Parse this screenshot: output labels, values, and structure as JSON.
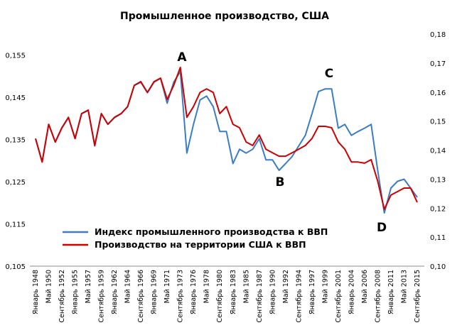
{
  "chart_data": {
    "type": "line",
    "title": "Промышленное производство, США",
    "categories": [
      "Январь 1948",
      null,
      "Май 1950",
      null,
      "Сентябрь 1952",
      null,
      "Январь 1955",
      null,
      "Май 1957",
      null,
      "Сентябрь 1959",
      null,
      "Январь 1962",
      null,
      "Май 1964",
      null,
      "Сентябрь 1966",
      null,
      "Январь 1969",
      null,
      "Май 1971",
      null,
      "Сентябрь 1973",
      null,
      "Январь 1976",
      null,
      "Май 1978",
      null,
      "Сентябрь 1980",
      null,
      "Январь 1983",
      null,
      "Май 1985",
      null,
      "Сентябрь 1987",
      null,
      "Январь 1990",
      null,
      "Май 1992",
      null,
      "Сентябрь 1994",
      null,
      "Январь 1997",
      null,
      "Май 1999",
      null,
      "Сентябрь 2001",
      null,
      "Январь 2004",
      null,
      "Май 2006",
      null,
      "Сентябрь 2008",
      null,
      "Январь 2011",
      null,
      "Май 2013",
      null,
      "Сентябрь 2015"
    ],
    "series": [
      {
        "name": "Индекс промышленного производства к ВВП",
        "color": "#3b7dc4",
        "values": [
          0.1352,
          0.1297,
          0.1386,
          0.1344,
          0.1377,
          0.1402,
          0.1352,
          0.1411,
          0.1419,
          0.1335,
          0.1411,
          0.1386,
          0.1402,
          0.1411,
          0.1428,
          0.1478,
          0.1486,
          0.1461,
          0.1486,
          0.1495,
          0.1436,
          0.1486,
          0.1511,
          0.1318,
          0.1386,
          0.1444,
          0.1453,
          0.1428,
          0.1369,
          0.1369,
          0.1293,
          0.1327,
          0.1318,
          0.1327,
          0.1352,
          0.1302,
          0.1302,
          0.1277,
          0.1293,
          0.131,
          0.1335,
          0.136,
          0.1411,
          0.1464,
          0.147,
          0.147,
          0.1377,
          0.1386,
          0.136,
          0.1369,
          0.1377,
          0.1386,
          0.1277,
          0.1176,
          0.1235,
          0.1251,
          0.1256,
          0.1235,
          0.1213
        ]
      },
      {
        "name": "Производство на территории США к ВВП",
        "color": "#cc0000",
        "axis": "y2",
        "values": [
          0.144,
          0.1359,
          0.1489,
          0.1428,
          0.1477,
          0.1513,
          0.144,
          0.1526,
          0.1538,
          0.1416,
          0.1526,
          0.1489,
          0.1513,
          0.1526,
          0.155,
          0.1623,
          0.1636,
          0.1599,
          0.1636,
          0.1648,
          0.1575,
          0.1623,
          0.1685,
          0.1513,
          0.155,
          0.1599,
          0.1611,
          0.1599,
          0.1526,
          0.155,
          0.1489,
          0.1477,
          0.1428,
          0.1416,
          0.1452,
          0.1403,
          0.1391,
          0.1379,
          0.1379,
          0.1391,
          0.1403,
          0.1416,
          0.144,
          0.1482,
          0.1482,
          0.1477,
          0.1428,
          0.1403,
          0.1359,
          0.1359,
          0.1355,
          0.1367,
          0.1293,
          0.1196,
          0.1245,
          0.1257,
          0.1269,
          0.1269,
          0.122
        ]
      }
    ],
    "ylim": [
      0.105,
      0.16
    ],
    "yticks": [
      {
        "value": 0.105,
        "label": "0,105"
      },
      {
        "value": 0.115,
        "label": "0,115"
      },
      {
        "value": 0.125,
        "label": "0,125"
      },
      {
        "value": 0.135,
        "label": "0,135"
      },
      {
        "value": 0.145,
        "label": "0,145"
      },
      {
        "value": 0.155,
        "label": "0,155"
      }
    ],
    "y2lim": [
      0.1,
      0.18
    ],
    "y2ticks": [
      {
        "value": 0.1,
        "label": "0,10"
      },
      {
        "value": 0.11,
        "label": "0,11"
      },
      {
        "value": 0.12,
        "label": "0,12"
      },
      {
        "value": 0.13,
        "label": "0,13"
      },
      {
        "value": 0.14,
        "label": "0,14"
      },
      {
        "value": 0.15,
        "label": "0,15"
      },
      {
        "value": 0.16,
        "label": "0,16"
      },
      {
        "value": 0.17,
        "label": "0,17"
      },
      {
        "value": 0.18,
        "label": "0,18"
      }
    ],
    "annotations": [
      "A",
      "B",
      "C",
      "D"
    ],
    "legend": "lower left"
  }
}
